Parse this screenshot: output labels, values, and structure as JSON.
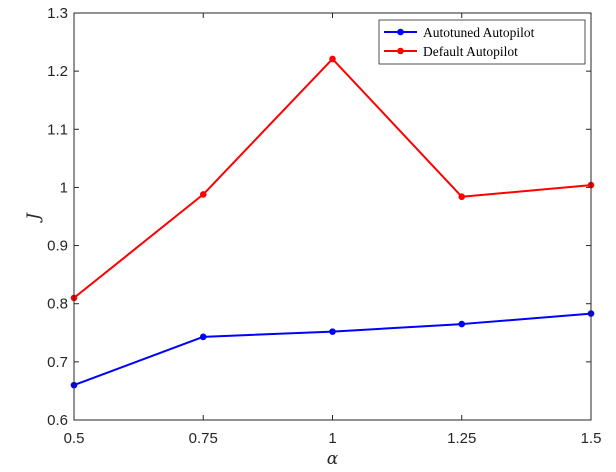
{
  "chart_data": {
    "type": "line",
    "x": [
      0.5,
      0.75,
      1,
      1.25,
      1.5
    ],
    "xlim": [
      0.5,
      1.5
    ],
    "ylim": [
      0.6,
      1.3
    ],
    "x_ticks": [
      "0.5",
      "0.75",
      "1",
      "1.25",
      "1.5"
    ],
    "y_ticks": [
      "0.6",
      "0.7",
      "0.8",
      "0.9",
      "1",
      "1.1",
      "1.2",
      "1.3"
    ],
    "xlabel": "α",
    "ylabel": "J",
    "grid": false,
    "legend_position": "top-right",
    "series": [
      {
        "name": "Autotuned Autopilot",
        "color": "#0000ff",
        "values": [
          0.66,
          0.743,
          0.752,
          0.765,
          0.783
        ]
      },
      {
        "name": "Default Autopilot",
        "color": "#ff0000",
        "values": [
          0.81,
          0.988,
          1.221,
          0.984,
          1.004
        ]
      }
    ]
  }
}
